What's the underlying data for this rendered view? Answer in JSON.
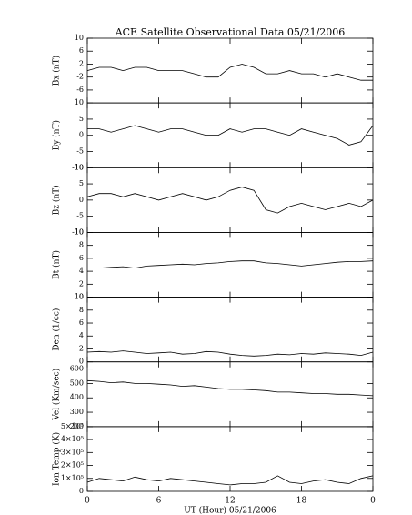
{
  "chart_data": [
    {
      "type": "line",
      "title": "ACE Satellite Observational Data   05/21/2006",
      "ylabel": "Bx (nT)",
      "x": [
        0,
        1,
        2,
        3,
        4,
        5,
        6,
        7,
        8,
        9,
        10,
        11,
        12,
        13,
        14,
        15,
        16,
        17,
        18,
        19,
        20,
        21,
        22,
        23,
        24
      ],
      "values": [
        0,
        1,
        1,
        0,
        1,
        1,
        0,
        0,
        0,
        -1,
        -2,
        -2,
        1,
        2,
        1,
        -1,
        -1,
        0,
        -1,
        -1,
        -2,
        -1,
        -2,
        -3,
        -3
      ],
      "xlim": [
        0,
        24
      ],
      "xticks": [
        0,
        6,
        12,
        18,
        {
          "value": 24,
          "label": "0"
        }
      ],
      "ylim": [
        -10,
        10
      ],
      "yticks": [
        10,
        6,
        2,
        -2,
        -6
      ],
      "color": "#000000"
    },
    {
      "type": "line",
      "ylabel": "By (nT)",
      "x": [
        0,
        1,
        2,
        3,
        4,
        5,
        6,
        7,
        8,
        9,
        10,
        11,
        12,
        13,
        14,
        15,
        16,
        17,
        18,
        19,
        20,
        21,
        22,
        23,
        24
      ],
      "values": [
        2,
        2,
        1,
        2,
        3,
        2,
        1,
        2,
        2,
        1,
        0,
        0,
        2,
        1,
        2,
        2,
        1,
        0,
        2,
        1,
        0,
        -1,
        -3,
        -2,
        3
      ],
      "xlim": [
        0,
        24
      ],
      "xticks": [
        0,
        6,
        12,
        18,
        {
          "value": 24,
          "label": "0"
        }
      ],
      "ylim": [
        -10,
        10
      ],
      "yticks": [
        10,
        5,
        0,
        -5,
        -10
      ],
      "color": "#000000"
    },
    {
      "type": "line",
      "ylabel": "Bz (nT)",
      "x": [
        0,
        1,
        2,
        3,
        4,
        5,
        6,
        7,
        8,
        9,
        10,
        11,
        12,
        13,
        14,
        15,
        16,
        17,
        18,
        19,
        20,
        21,
        22,
        23,
        24
      ],
      "values": [
        1,
        2,
        2,
        1,
        2,
        1,
        0,
        1,
        2,
        1,
        0,
        1,
        3,
        4,
        3,
        -3,
        -4,
        -2,
        -1,
        -2,
        -3,
        -2,
        -1,
        -2,
        0
      ],
      "xlim": [
        0,
        24
      ],
      "xticks": [
        0,
        6,
        12,
        18,
        {
          "value": 24,
          "label": "0"
        }
      ],
      "ylim": [
        -10,
        10
      ],
      "yticks": [
        10,
        5,
        0,
        -5,
        -10
      ],
      "color": "#000000"
    },
    {
      "type": "line",
      "ylabel": "Bt (nT)",
      "x": [
        0,
        1,
        2,
        3,
        4,
        5,
        6,
        7,
        8,
        9,
        10,
        11,
        12,
        13,
        14,
        15,
        16,
        17,
        18,
        19,
        20,
        21,
        22,
        23,
        24
      ],
      "values": [
        4.5,
        4.5,
        4.6,
        4.7,
        4.5,
        4.8,
        4.9,
        5,
        5.1,
        5,
        5.2,
        5.3,
        5.5,
        5.6,
        5.6,
        5.3,
        5.2,
        5.0,
        4.8,
        5.0,
        5.2,
        5.4,
        5.5,
        5.5,
        5.6
      ],
      "xlim": [
        0,
        24
      ],
      "xticks": [
        0,
        6,
        12,
        18,
        {
          "value": 24,
          "label": "0"
        }
      ],
      "ylim": [
        0,
        10
      ],
      "yticks": [
        10,
        8,
        6,
        4,
        2,
        0
      ],
      "color": "#000000"
    },
    {
      "type": "line",
      "ylabel": "Den (1/cc)",
      "x": [
        0,
        1,
        2,
        3,
        4,
        5,
        6,
        7,
        8,
        9,
        10,
        11,
        12,
        13,
        14,
        15,
        16,
        17,
        18,
        19,
        20,
        21,
        22,
        23,
        24
      ],
      "values": [
        1.5,
        1.6,
        1.5,
        1.7,
        1.5,
        1.3,
        1.4,
        1.5,
        1.2,
        1.3,
        1.6,
        1.5,
        1.2,
        1.0,
        0.9,
        1.0,
        1.2,
        1.1,
        1.3,
        1.2,
        1.4,
        1.3,
        1.2,
        1.0,
        1.5
      ],
      "xlim": [
        0,
        24
      ],
      "xticks": [
        0,
        6,
        12,
        18,
        {
          "value": 24,
          "label": "0"
        }
      ],
      "ylim": [
        0,
        10
      ],
      "yticks": [
        10,
        8,
        6,
        4,
        2,
        0
      ],
      "color": "#000000"
    },
    {
      "type": "line",
      "ylabel": "Vel (Km/sec)",
      "x": [
        0,
        1,
        2,
        3,
        4,
        5,
        6,
        7,
        8,
        9,
        10,
        11,
        12,
        13,
        14,
        15,
        16,
        17,
        18,
        19,
        20,
        21,
        22,
        23,
        24
      ],
      "values": [
        520,
        515,
        505,
        510,
        500,
        500,
        495,
        490,
        480,
        485,
        475,
        465,
        460,
        460,
        455,
        450,
        440,
        440,
        435,
        430,
        430,
        425,
        425,
        420,
        415
      ],
      "xlim": [
        0,
        24
      ],
      "xticks": [
        0,
        6,
        12,
        18,
        {
          "value": 24,
          "label": "0"
        }
      ],
      "ylim": [
        200,
        650
      ],
      "yticks": [
        600,
        500,
        400,
        300,
        200
      ],
      "color": "#000000"
    },
    {
      "type": "line",
      "ylabel": "Ion Temp (K)",
      "xlabel": "UT (Hour)   05/21/2006",
      "x": [
        0,
        1,
        2,
        3,
        4,
        5,
        6,
        7,
        8,
        9,
        10,
        11,
        12,
        13,
        14,
        15,
        16,
        17,
        18,
        19,
        20,
        21,
        22,
        23,
        24
      ],
      "values": [
        70000,
        100000,
        90000,
        80000,
        110000,
        90000,
        80000,
        100000,
        90000,
        80000,
        70000,
        60000,
        50000,
        60000,
        60000,
        70000,
        120000,
        70000,
        60000,
        80000,
        90000,
        70000,
        60000,
        100000,
        120000
      ],
      "xlim": [
        0,
        24
      ],
      "xticks": [
        0,
        6,
        12,
        18,
        {
          "value": 24,
          "label": "0"
        }
      ],
      "ylim": [
        0,
        500000
      ],
      "yticks": [
        {
          "value": 500000,
          "label": "5×10⁵"
        },
        {
          "value": 400000,
          "label": "4×10⁵"
        },
        {
          "value": 300000,
          "label": "3×10⁵"
        },
        {
          "value": 200000,
          "label": "2×10⁵"
        },
        {
          "value": 100000,
          "label": "1×10⁵"
        },
        0
      ],
      "color": "#000000"
    }
  ]
}
